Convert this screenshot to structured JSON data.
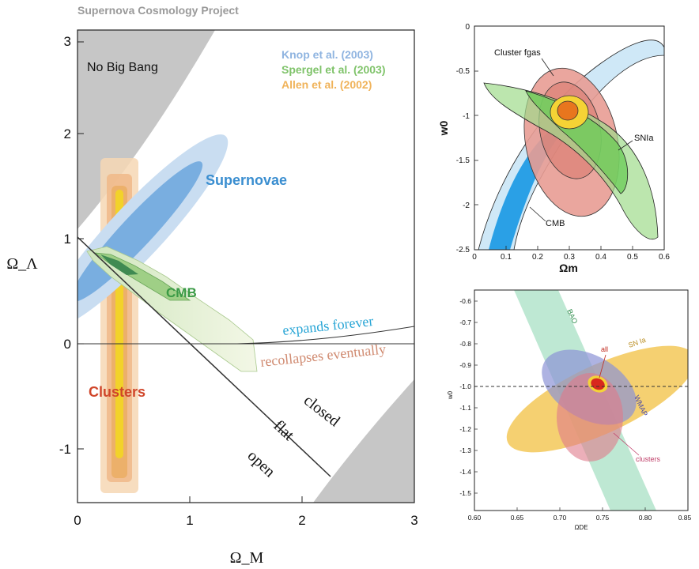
{
  "header": {
    "title": "Supernova Cosmology Project"
  },
  "chart_data": [
    {
      "type": "contour",
      "xlabel": "Ω_M",
      "ylabel": "Ω_Λ",
      "xlim": [
        0,
        3
      ],
      "ylim": [
        -1.5,
        3
      ],
      "xticks": [
        "0",
        "1",
        "2",
        "3"
      ],
      "yticks": [
        "-1",
        "0",
        "1",
        "2",
        "3"
      ],
      "legend": [
        {
          "label": "Knop et al. (2003)",
          "color": "#8fb4e0"
        },
        {
          "label": "Spergel et al. (2003)",
          "color": "#7fc36a"
        },
        {
          "label": "Allen et al. (2002)",
          "color": "#f0b35a"
        }
      ],
      "regions": {
        "no_big_bang": "No Big Bang",
        "supernovae": "Supernovae",
        "cmb": "CMB",
        "clusters": "Clusters",
        "expands_forever": "expands forever",
        "recollapses": "recollapses eventually",
        "closed": "closed",
        "flat": "flat",
        "open": "open"
      },
      "flat_line": {
        "points": [
          [
            0,
            1
          ],
          [
            2.25,
            -1.25
          ]
        ]
      },
      "colors": {
        "supernovae": "#3a8ed0",
        "cmb": "#3a9a45",
        "clusters": "#d0462a",
        "no_big_bang": "#c4c4c4"
      }
    },
    {
      "type": "contour",
      "xlabel": "Ωm",
      "ylabel": "w0",
      "xlim": [
        0,
        0.6
      ],
      "ylim": [
        -2.5,
        0
      ],
      "xticks": [
        "0",
        "0.1",
        "0.2",
        "0.3",
        "0.4",
        "0.5",
        "0.6"
      ],
      "yticks": [
        "0",
        "-0.5",
        "-1",
        "-1.5",
        "-2",
        "-2.5"
      ],
      "labels": {
        "cluster": "Cluster fgas",
        "snia": "SNIa",
        "cmb": "CMB"
      }
    },
    {
      "type": "contour",
      "xlabel": "ΩDE",
      "ylabel": "w0",
      "xlim": [
        0.6,
        0.85
      ],
      "ylim": [
        -1.55,
        -0.55
      ],
      "xticks": [
        "0.60",
        "0.65",
        "0.70",
        "0.75",
        "0.80",
        "0.85"
      ],
      "yticks": [
        "-0.6",
        "-0.7",
        "-0.8",
        "-0.9",
        "-1.0",
        "-1.1",
        "-1.2",
        "-1.3",
        "-1.4",
        "-1.5"
      ],
      "labels": {
        "bao": "BAO",
        "snla": "SN Ia",
        "wmap": "WMAP",
        "all": "all",
        "clusters": "clusters"
      },
      "reference_line": {
        "w0": -1.0
      }
    }
  ]
}
